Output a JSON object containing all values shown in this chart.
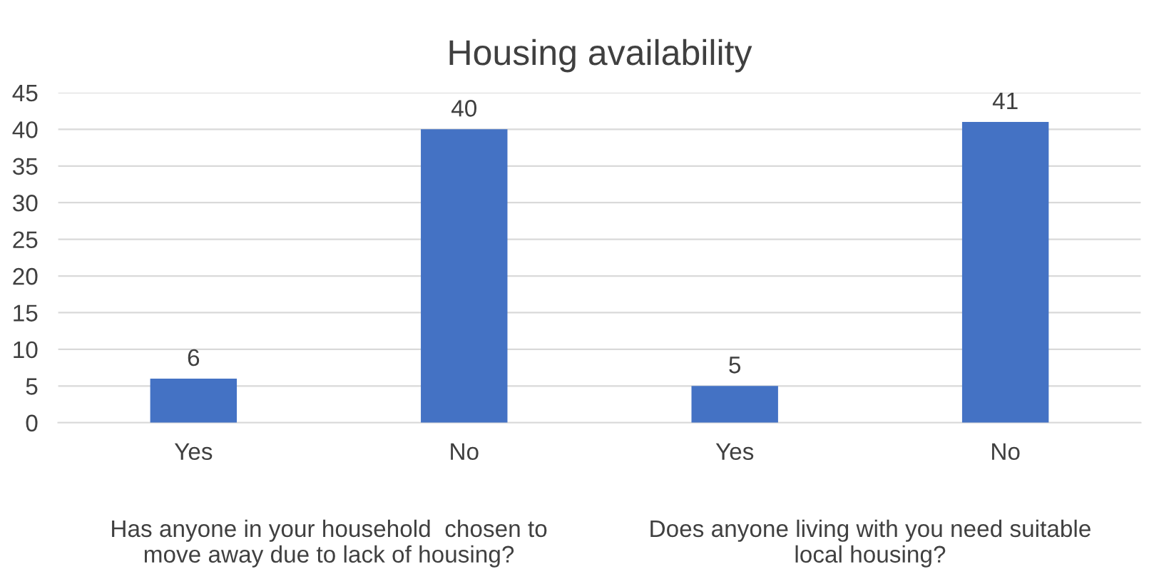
{
  "chart_data": {
    "type": "bar",
    "title": "Housing availability",
    "categories": [
      "Yes",
      "No",
      "Yes",
      "No"
    ],
    "values": [
      6,
      40,
      5,
      41
    ],
    "color": "#4472c4",
    "ylim": [
      0,
      45
    ],
    "yticks": [
      0,
      5,
      10,
      15,
      20,
      25,
      30,
      35,
      40,
      45
    ],
    "grid": "y",
    "data_labels": true,
    "legend": false,
    "annotations": [
      "Has anyone in your household  chosen to move away due to lack of housing?",
      "Does anyone living with you need suitable local housing?"
    ]
  }
}
